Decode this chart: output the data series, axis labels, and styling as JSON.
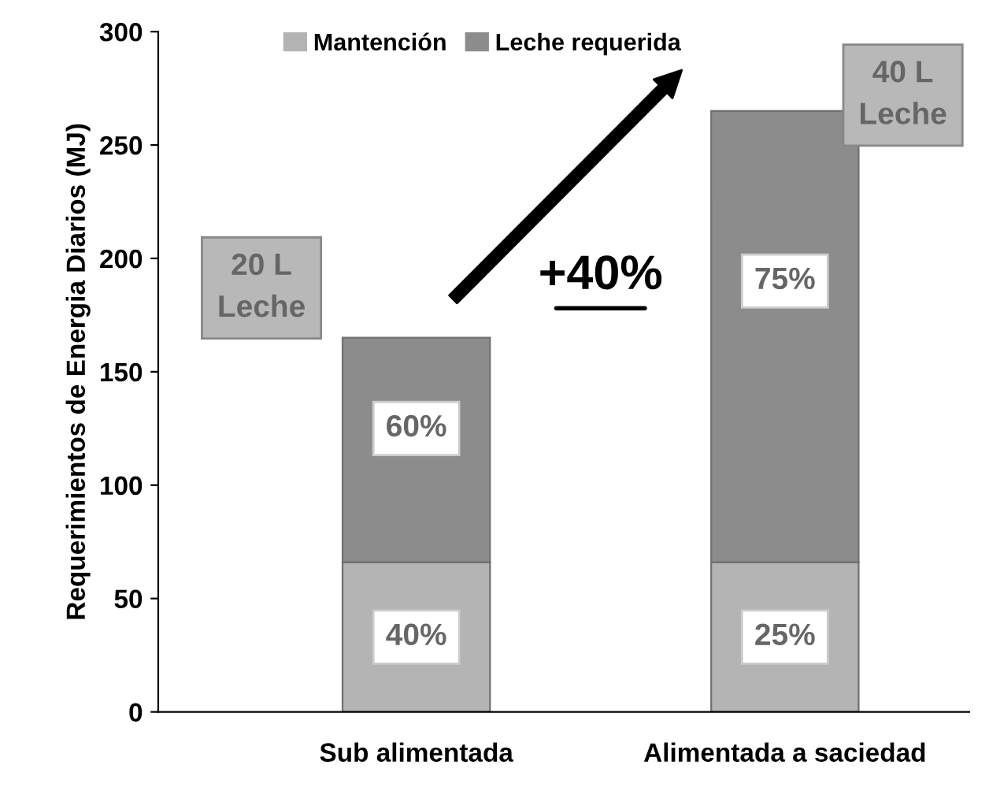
{
  "chart_data": {
    "type": "bar",
    "stacked": true,
    "ylabel": "Requerimientos de Energia Diarios (MJ)",
    "categories": [
      "Sub alimentada",
      "Alimentada a saciedad"
    ],
    "series": [
      {
        "name": "Mantención",
        "color": "#b4b4b4",
        "values": [
          66,
          66
        ]
      },
      {
        "name": "Leche requerida",
        "color": "#8c8c8c",
        "values": [
          99,
          199
        ]
      }
    ],
    "ylim": [
      0,
      300
    ],
    "yticks": [
      0,
      50,
      100,
      150,
      200,
      250,
      300
    ],
    "grid": false,
    "legend": "top",
    "annotations": [
      "40%",
      "25%",
      "60%",
      "75%",
      "20 L\nLeche",
      "40 L\nLeche",
      "+40%"
    ]
  }
}
